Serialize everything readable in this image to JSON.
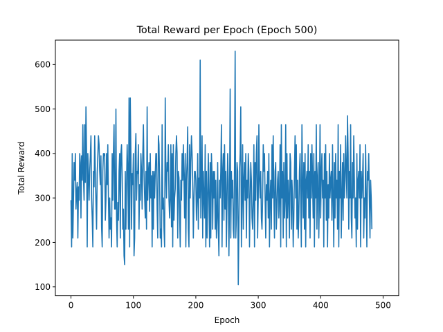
{
  "chart_data": {
    "type": "line",
    "title": "Total Reward per Epoch (Epoch 500)",
    "xlabel": "Epoch",
    "ylabel": "Total Reward",
    "xlim": [
      -25,
      525
    ],
    "ylim": [
      80,
      655
    ],
    "xticks": [
      0,
      100,
      200,
      300,
      400,
      500
    ],
    "yticks": [
      100,
      200,
      300,
      400,
      500,
      600
    ],
    "grid": false,
    "legend": "none",
    "line_color": "#1f77b4",
    "series": [
      {
        "x_start": 0,
        "x_step": 1,
        "values": [
          295,
          190,
          400,
          210,
          295,
          380,
          340,
          400,
          275,
          310,
          335,
          210,
          325,
          295,
          400,
          380,
          255,
          395,
          340,
          465,
          345,
          295,
          465,
          335,
          505,
          400,
          190,
          400,
          355,
          295,
          360,
          395,
          440,
          300,
          255,
          190,
          360,
          325,
          440,
          360,
          290,
          230,
          355,
          395,
          440,
          420,
          360,
          330,
          395,
          235,
          190,
          360,
          400,
          395,
          400,
          250,
          295,
          400,
          330,
          420,
          300,
          210,
          300,
          230,
          255,
          190,
          400,
          295,
          400,
          465,
          275,
          275,
          500,
          255,
          190,
          290,
          250,
          360,
          400,
          210,
          400,
          420,
          350,
          230,
          275,
          170,
          150,
          360,
          230,
          330,
          420,
          360,
          230,
          525,
          190,
          525,
          400,
          230,
          355,
          330,
          400,
          170,
          210,
          400,
          445,
          295,
          360,
          355,
          420,
          230,
          330,
          295,
          400,
          360,
          275,
          395,
          465,
          360,
          300,
          255,
          360,
          230,
          505,
          295,
          355,
          380,
          270,
          400,
          300,
          350,
          190,
          360,
          230,
          360,
          300,
          355,
          400,
          400,
          275,
          210,
          440,
          420,
          340,
          210,
          230,
          190,
          465,
          275,
          300,
          230,
          190,
          525,
          355,
          300,
          380,
          360,
          420,
          295,
          255,
          300,
          420,
          235,
          400,
          190,
          420,
          250,
          300,
          320,
          400,
          440,
          400,
          210,
          360,
          345,
          270,
          190,
          340,
          295,
          400,
          340,
          420,
          345,
          255,
          400,
          190,
          340,
          380,
          460,
          230,
          190,
          420,
          300,
          380,
          440,
          400,
          340,
          210,
          295,
          360,
          360,
          340,
          250,
          300,
          400,
          230,
          345,
          300,
          610,
          255,
          340,
          440,
          210,
          360,
          300,
          255,
          420,
          190,
          360,
          210,
          300,
          400,
          300,
          190,
          380,
          210,
          400,
          355,
          230,
          360,
          300,
          360,
          230,
          340,
          210,
          255,
          380,
          230,
          170,
          340,
          300,
          360,
          465,
          190,
          360,
          400,
          250,
          420,
          275,
          360,
          190,
          300,
          400,
          340,
          170,
          300,
          545,
          210,
          360,
          300,
          340,
          230,
          210,
          380,
          630,
          210,
          255,
          380,
          360,
          105,
          230,
          360,
          400,
          505,
          190,
          300,
          420,
          230,
          340,
          380,
          295,
          400,
          210,
          340,
          300,
          400,
          360,
          190,
          295,
          380,
          340,
          255,
          230,
          300,
          420,
          190,
          380,
          295,
          400,
          440,
          210,
          300,
          465,
          340,
          300,
          360,
          255,
          230,
          295,
          420,
          360,
          400,
          300,
          210,
          330,
          295,
          360,
          255,
          400,
          190,
          300,
          340,
          230,
          420,
          300,
          440,
          300,
          210,
          360,
          380,
          230,
          275,
          340,
          360,
          255,
          300,
          420,
          190,
          465,
          300,
          360,
          210,
          380,
          255,
          300,
          465,
          190,
          400,
          255,
          340,
          300,
          210,
          400,
          380,
          230,
          340,
          300,
          190,
          255,
          360,
          440,
          300,
          420,
          230,
          340,
          210,
          255,
          360,
          400,
          300,
          190,
          465,
          340,
          255,
          380,
          230,
          400,
          190,
          340,
          360,
          300,
          420,
          255,
          360,
          210,
          400,
          300,
          420,
          340,
          255,
          400,
          190,
          360,
          300,
          465,
          230,
          340,
          380,
          210,
          300,
          465,
          255,
          360,
          400,
          300,
          340,
          190,
          400,
          300,
          420,
          250,
          360,
          190,
          330,
          255,
          400,
          300,
          340,
          360,
          250,
          420,
          300,
          190,
          380,
          255,
          400,
          300,
          340,
          230,
          465,
          190,
          360,
          300,
          420,
          210,
          300,
          380,
          250,
          400,
          300,
          340,
          440,
          360,
          300,
          485,
          400,
          230,
          360,
          300,
          465,
          255,
          210,
          380,
          300,
          440,
          340,
          255,
          300,
          190,
          400,
          230,
          340,
          360,
          300,
          420,
          190,
          360,
          300,
          340,
          400,
          210,
          300,
          255,
          420,
          300,
          190,
          360,
          340,
          400,
          300,
          210,
          340,
          300,
          230
        ]
      }
    ]
  }
}
